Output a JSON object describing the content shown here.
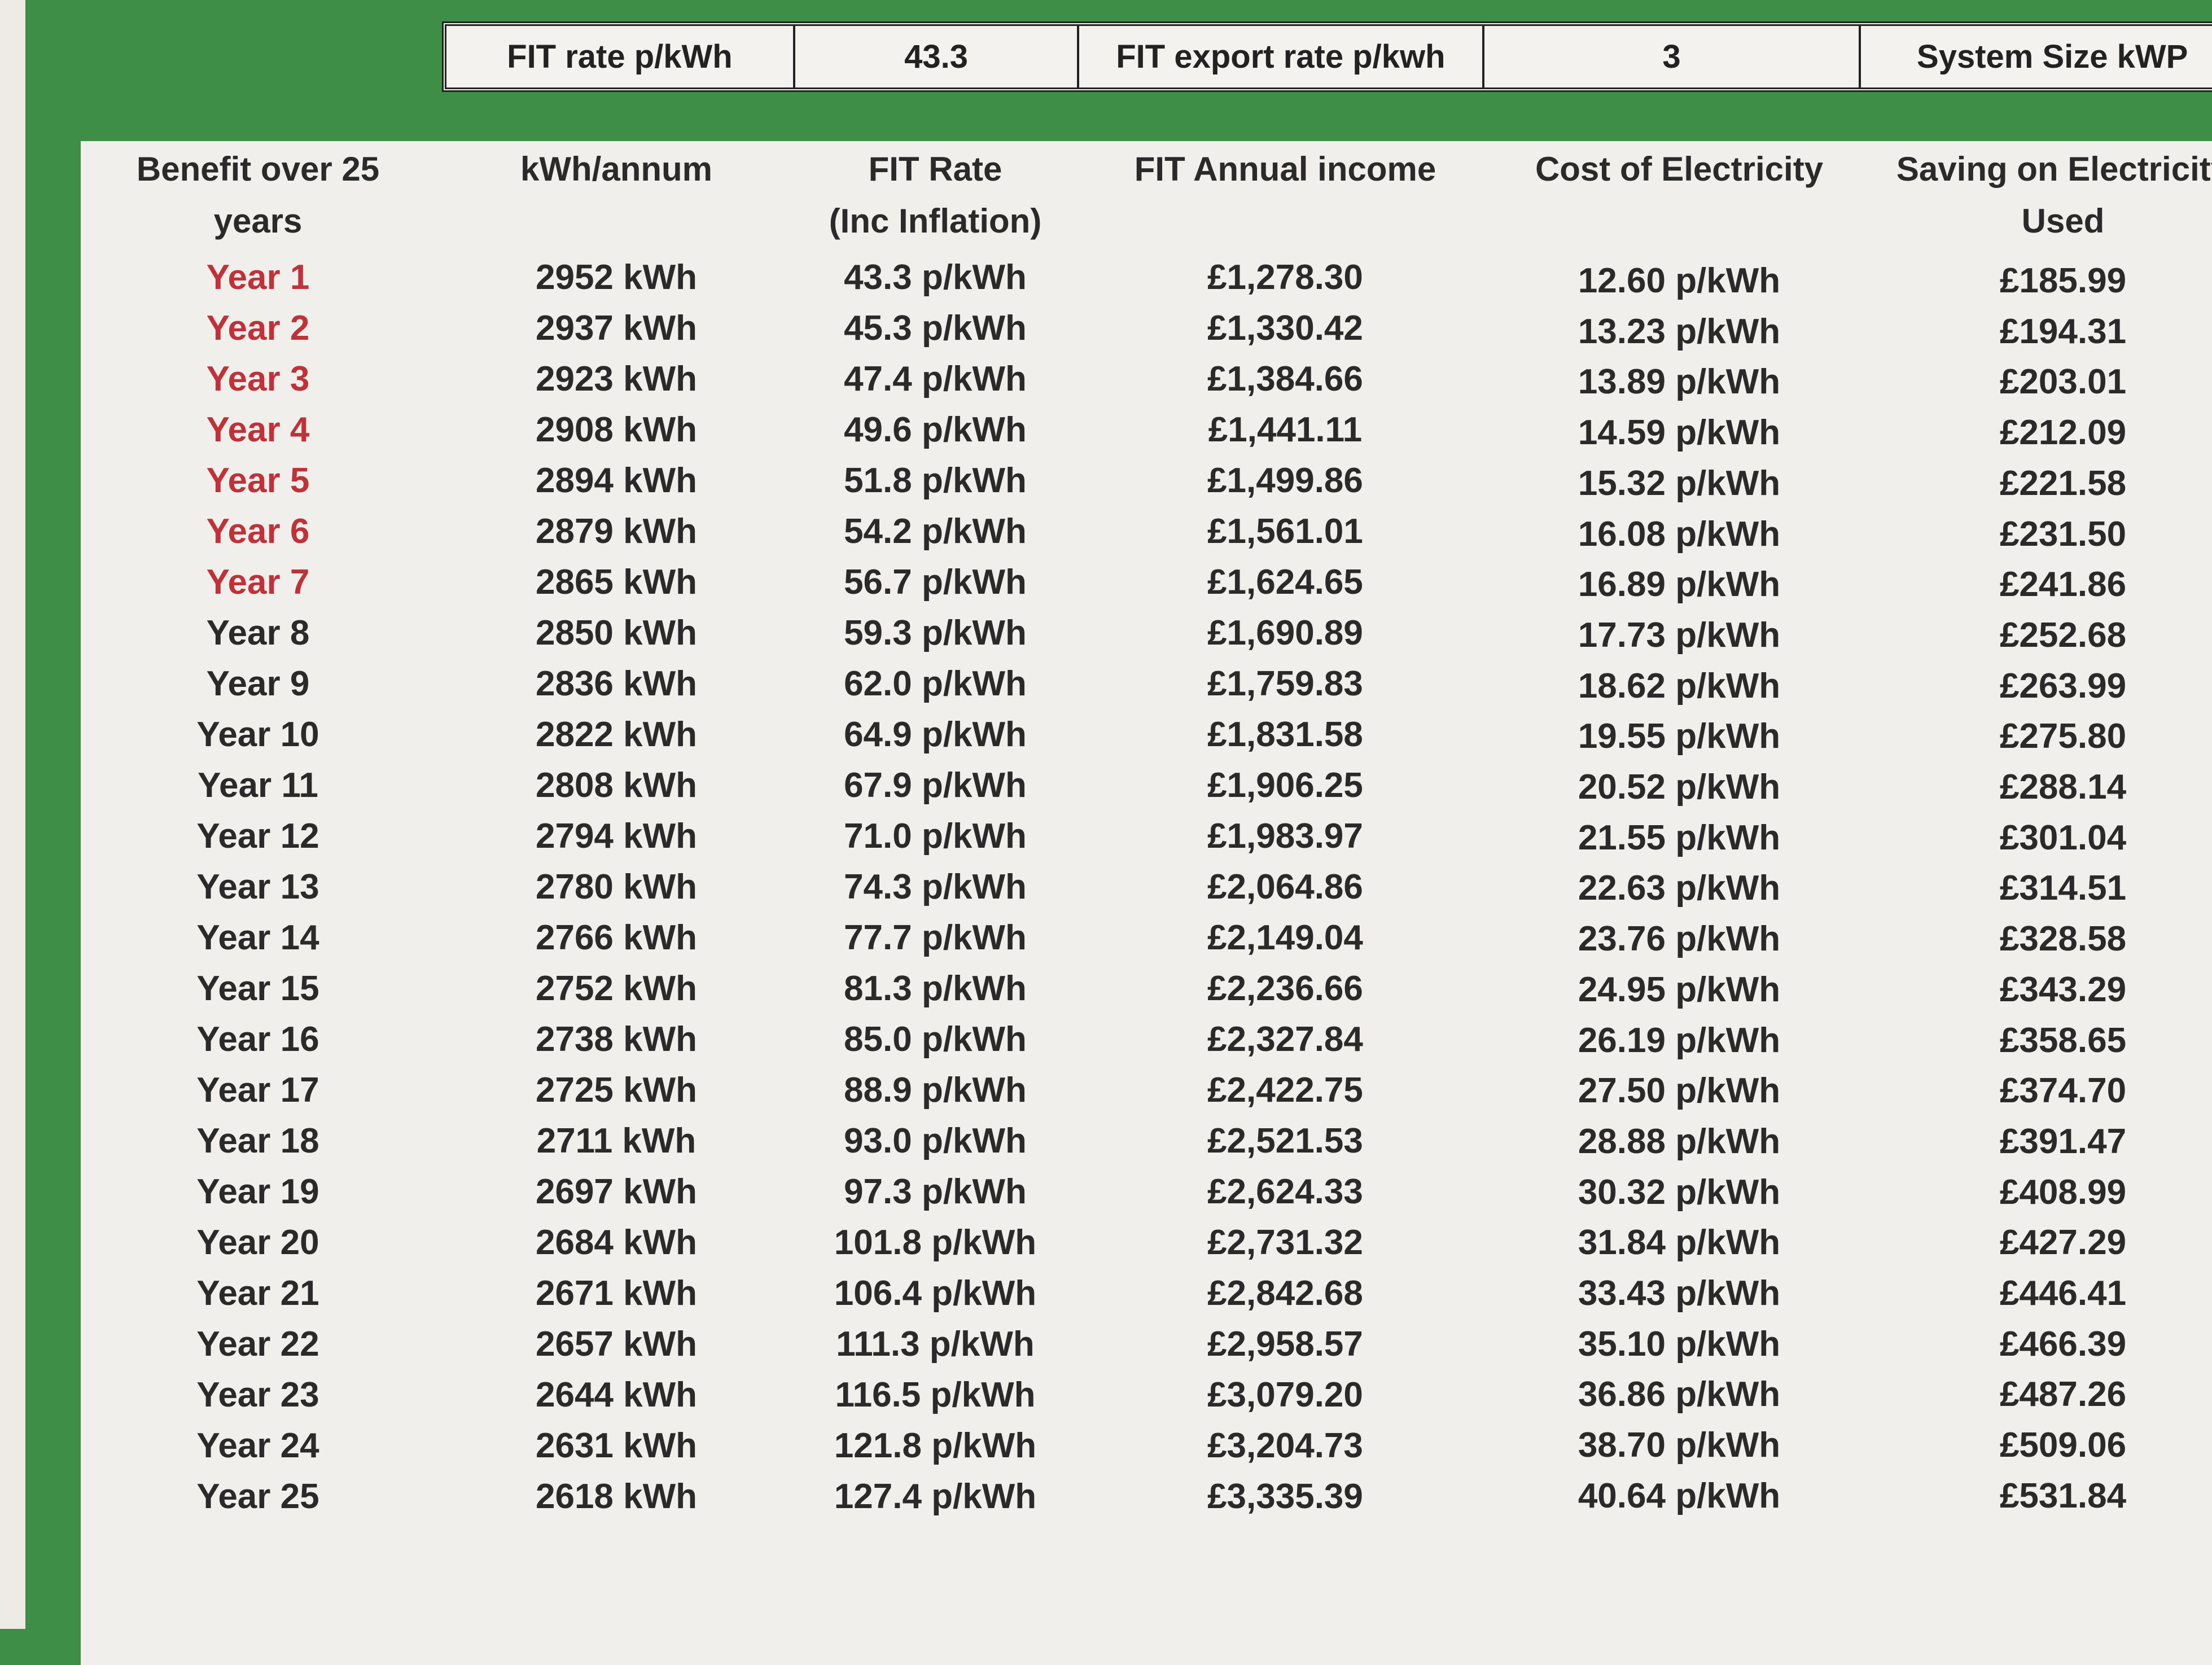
{
  "summary": {
    "fit_rate_label": "FIT rate p/kWh",
    "fit_rate_value": "43.3",
    "export_rate_label": "FIT export rate p/kwh",
    "export_rate_value": "3",
    "system_size_label": "System Size kWP"
  },
  "table": {
    "headers": [
      [
        "Benefit over 25",
        "years"
      ],
      [
        "kWh/annum",
        ""
      ],
      [
        "FIT Rate",
        "(Inc Inflation)"
      ],
      [
        "FIT Annual income",
        ""
      ],
      [
        "Cost of Electricity",
        ""
      ],
      [
        "Saving on Electricity",
        "Used"
      ]
    ],
    "highlight_color": "#c0323a",
    "highlighted_years": 7,
    "rows": [
      [
        "Year 1",
        "2952 kWh",
        "43.3 p/kWh",
        "£1,278.30",
        "12.60 p/kWh",
        "£185.99"
      ],
      [
        "Year 2",
        "2937 kWh",
        "45.3 p/kWh",
        "£1,330.42",
        "13.23 p/kWh",
        "£194.31"
      ],
      [
        "Year 3",
        "2923 kWh",
        "47.4 p/kWh",
        "£1,384.66",
        "13.89 p/kWh",
        "£203.01"
      ],
      [
        "Year 4",
        "2908 kWh",
        "49.6 p/kWh",
        "£1,441.11",
        "14.59 p/kWh",
        "£212.09"
      ],
      [
        "Year 5",
        "2894 kWh",
        "51.8 p/kWh",
        "£1,499.86",
        "15.32 p/kWh",
        "£221.58"
      ],
      [
        "Year 6",
        "2879 kWh",
        "54.2 p/kWh",
        "£1,561.01",
        "16.08 p/kWh",
        "£231.50"
      ],
      [
        "Year 7",
        "2865 kWh",
        "56.7 p/kWh",
        "£1,624.65",
        "16.89 p/kWh",
        "£241.86"
      ],
      [
        "Year 8",
        "2850 kWh",
        "59.3 p/kWh",
        "£1,690.89",
        "17.73 p/kWh",
        "£252.68"
      ],
      [
        "Year 9",
        "2836 kWh",
        "62.0 p/kWh",
        "£1,759.83",
        "18.62 p/kWh",
        "£263.99"
      ],
      [
        "Year 10",
        "2822 kWh",
        "64.9 p/kWh",
        "£1,831.58",
        "19.55 p/kWh",
        "£275.80"
      ],
      [
        "Year 11",
        "2808 kWh",
        "67.9 p/kWh",
        "£1,906.25",
        "20.52 p/kWh",
        "£288.14"
      ],
      [
        "Year 12",
        "2794 kWh",
        "71.0 p/kWh",
        "£1,983.97",
        "21.55 p/kWh",
        "£301.04"
      ],
      [
        "Year 13",
        "2780 kWh",
        "74.3 p/kWh",
        "£2,064.86",
        "22.63 p/kWh",
        "£314.51"
      ],
      [
        "Year 14",
        "2766 kWh",
        "77.7 p/kWh",
        "£2,149.04",
        "23.76 p/kWh",
        "£328.58"
      ],
      [
        "Year 15",
        "2752 kWh",
        "81.3 p/kWh",
        "£2,236.66",
        "24.95 p/kWh",
        "£343.29"
      ],
      [
        "Year 16",
        "2738 kWh",
        "85.0 p/kWh",
        "£2,327.84",
        "26.19 p/kWh",
        "£358.65"
      ],
      [
        "Year 17",
        "2725 kWh",
        "88.9 p/kWh",
        "£2,422.75",
        "27.50 p/kWh",
        "£374.70"
      ],
      [
        "Year 18",
        "2711 kWh",
        "93.0 p/kWh",
        "£2,521.53",
        "28.88 p/kWh",
        "£391.47"
      ],
      [
        "Year 19",
        "2697 kWh",
        "97.3 p/kWh",
        "£2,624.33",
        "30.32 p/kWh",
        "£408.99"
      ],
      [
        "Year 20",
        "2684 kWh",
        "101.8 p/kWh",
        "£2,731.32",
        "31.84 p/kWh",
        "£427.29"
      ],
      [
        "Year 21",
        "2671 kWh",
        "106.4 p/kWh",
        "£2,842.68",
        "33.43 p/kWh",
        "£446.41"
      ],
      [
        "Year 22",
        "2657 kWh",
        "111.3 p/kWh",
        "£2,958.57",
        "35.10 p/kWh",
        "£466.39"
      ],
      [
        "Year 23",
        "2644 kWh",
        "116.5 p/kWh",
        "£3,079.20",
        "36.86 p/kWh",
        "£487.26"
      ],
      [
        "Year 24",
        "2631 kWh",
        "121.8 p/kWh",
        "£3,204.73",
        "38.70 p/kWh",
        "£509.06"
      ],
      [
        "Year 25",
        "2618 kWh",
        "127.4 p/kWh",
        "£3,335.39",
        "40.64 p/kWh",
        "£531.84"
      ]
    ]
  }
}
